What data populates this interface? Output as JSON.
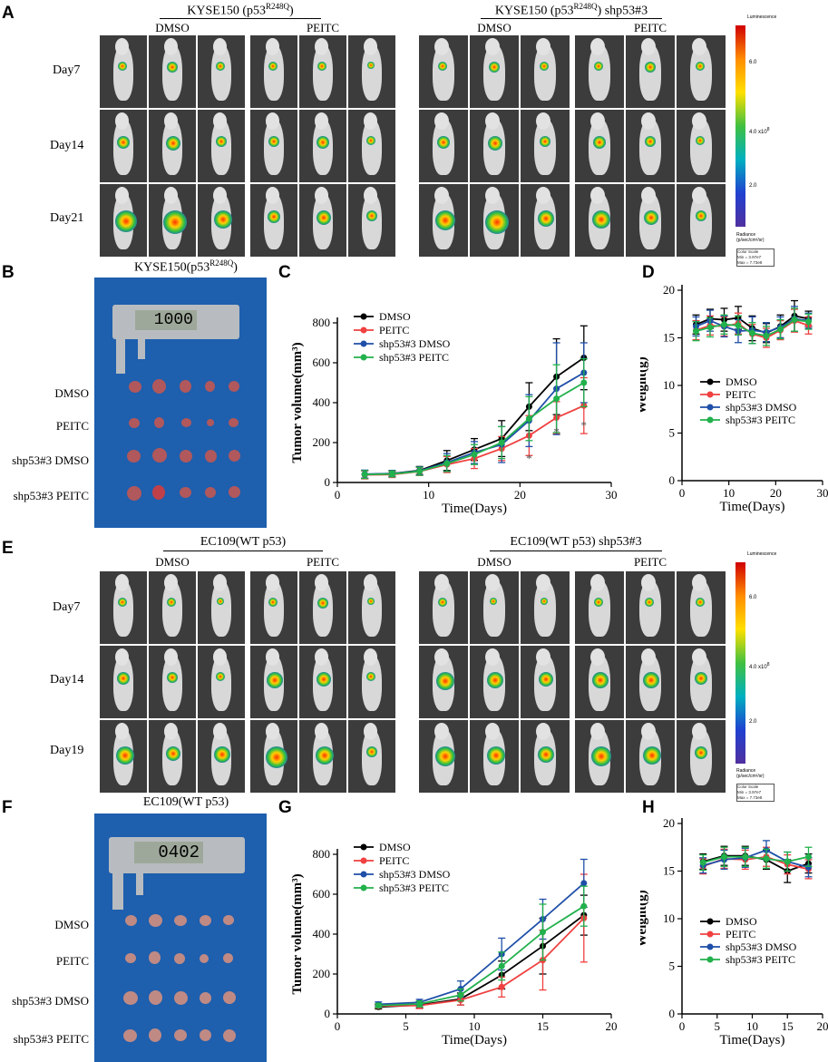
{
  "figure": {
    "panel_labels": [
      "A",
      "B",
      "C",
      "D",
      "E",
      "F",
      "G",
      "H"
    ],
    "panelA": {
      "header_left": "KYSE150 (p53",
      "header_left_sup": "R248Q",
      "header_left_end": ")",
      "header_right": "KYSE150 (p53",
      "header_right_sup": "R248Q",
      "header_right_end": ") shp53#3",
      "groups": [
        "DMSO",
        "PEITC",
        "DMSO",
        "PEITC"
      ],
      "days": [
        "Day7",
        "Day14",
        "Day21"
      ],
      "scale_title": "Luminescence",
      "scale_ticks": [
        "6.0",
        "4.0",
        "2.0"
      ],
      "scale_exp": "x10",
      "scale_exp_sup": "8",
      "scale_unit_1": "Radiance",
      "scale_unit_2": "(p/sec/cm²/sr)",
      "scale_box_1": "Color Scale",
      "scale_box_2": "Min = 3.97e7",
      "scale_box_3": "Max = 7.73e8"
    },
    "panelB": {
      "title": "KYSE150(p53",
      "title_sup": "R248Q",
      "title_end": ")",
      "display": "1000",
      "rows": [
        "DMSO",
        "PEITC",
        "shp53#3 DMSO",
        "shp53#3 PEITC"
      ]
    },
    "panelE": {
      "header_left": "EC109(WT p53)",
      "header_right": "EC109(WT p53) shp53#3",
      "groups": [
        "DMSO",
        "PEITC",
        "DMSO",
        "PEITC"
      ],
      "days": [
        "Day7",
        "Day14",
        "Day19"
      ],
      "scale_title": "Luminescence",
      "scale_ticks": [
        "6.0",
        "4.0",
        "2.0"
      ],
      "scale_exp": "x10",
      "scale_exp_sup": "8",
      "scale_unit_1": "Radiance",
      "scale_unit_2": "(p/sec/cm²/sr)",
      "scale_box_1": "Color Scale",
      "scale_box_2": "Min = 3.97e7",
      "scale_box_3": "Max = 7.73e8"
    },
    "panelF": {
      "title": "EC109(WT p53)",
      "display": "0402",
      "rows": [
        "DMSO",
        "PEITC",
        "shp53#3 DMSO",
        "shp53#3 PEITC"
      ]
    },
    "colors": {
      "DMSO": "#000000",
      "PEITC": "#f04040",
      "shp53#3 DMSO": "#1f4fa8",
      "shp53#3 PEITC": "#22b14c"
    }
  },
  "chart_data": [
    {
      "id": "C",
      "type": "line",
      "xlabel": "Time(Days)",
      "ylabel": "Tumor volume(mm³)",
      "xlim": [
        0,
        30
      ],
      "ylim": [
        0,
        800
      ],
      "xticks": [
        0,
        10,
        20,
        30
      ],
      "yticks": [
        0,
        200,
        400,
        600,
        800
      ],
      "x": [
        3,
        6,
        9,
        12,
        15,
        18,
        21,
        24,
        27
      ],
      "series": [
        {
          "name": "DMSO",
          "values": [
            40,
            45,
            60,
            110,
            165,
            220,
            380,
            530,
            625
          ],
          "err": [
            20,
            15,
            20,
            50,
            55,
            90,
            120,
            190,
            160
          ]
        },
        {
          "name": "PEITC",
          "values": [
            38,
            40,
            55,
            90,
            120,
            170,
            235,
            325,
            385
          ],
          "err": [
            20,
            15,
            20,
            40,
            50,
            60,
            100,
            80,
            140
          ]
        },
        {
          "name": "shp53#3 DMSO",
          "values": [
            42,
            45,
            58,
            100,
            150,
            190,
            310,
            470,
            550
          ],
          "err": [
            20,
            15,
            20,
            45,
            55,
            90,
            130,
            230,
            150
          ]
        },
        {
          "name": "shp53#3 PEITC",
          "values": [
            40,
            43,
            56,
            95,
            140,
            200,
            320,
            420,
            500
          ],
          "err": [
            20,
            15,
            20,
            40,
            50,
            80,
            110,
            170,
            120
          ]
        }
      ],
      "annotations": [
        "*",
        "*",
        "*"
      ],
      "legend": "top-left"
    },
    {
      "id": "D",
      "type": "line",
      "xlabel": "Time(Days)",
      "ylabel": "Weight(g)",
      "xlim": [
        0,
        30
      ],
      "ylim": [
        0,
        20
      ],
      "xticks": [
        0,
        10,
        20,
        30
      ],
      "yticks": [
        0,
        5,
        10,
        15,
        20
      ],
      "x": [
        3,
        6,
        9,
        12,
        15,
        18,
        21,
        24,
        27
      ],
      "series": [
        {
          "name": "DMSO",
          "values": [
            16.4,
            17.0,
            16.9,
            17.1,
            16.0,
            15.5,
            16.2,
            17.3,
            17.0
          ],
          "err": [
            1.0,
            1.0,
            1.2,
            1.2,
            1.3,
            1.0,
            1.2,
            1.6,
            0.8
          ]
        },
        {
          "name": "PEITC",
          "values": [
            15.8,
            16.3,
            16.2,
            16.5,
            15.4,
            15.0,
            15.8,
            16.8,
            16.3
          ],
          "err": [
            1.0,
            1.0,
            1.0,
            1.1,
            1.0,
            1.0,
            1.0,
            1.2,
            0.9
          ]
        },
        {
          "name": "shp53#3 DMSO",
          "values": [
            16.2,
            16.8,
            16.2,
            15.7,
            15.8,
            15.6,
            16.1,
            17.0,
            16.8
          ],
          "err": [
            1.0,
            1.1,
            1.1,
            1.2,
            1.4,
            1.0,
            1.1,
            1.3,
            0.8
          ]
        },
        {
          "name": "shp53#3 PEITC",
          "values": [
            15.7,
            16.1,
            16.4,
            16.3,
            15.5,
            15.2,
            15.9,
            16.9,
            16.7
          ],
          "err": [
            1.0,
            1.0,
            1.0,
            1.0,
            1.1,
            1.0,
            1.0,
            1.2,
            0.8
          ]
        }
      ],
      "legend": "center"
    },
    {
      "id": "G",
      "type": "line",
      "xlabel": "Time(Days)",
      "ylabel": "Tumor volume(mm³)",
      "xlim": [
        0,
        20
      ],
      "ylim": [
        0,
        800
      ],
      "xticks": [
        0,
        5,
        10,
        15,
        20
      ],
      "yticks": [
        0,
        200,
        400,
        600,
        800
      ],
      "x": [
        3,
        6,
        9,
        12,
        15,
        18
      ],
      "series": [
        {
          "name": "DMSO",
          "values": [
            35,
            45,
            75,
            195,
            340,
            495
          ],
          "err": [
            10,
            15,
            30,
            70,
            140,
            100
          ]
        },
        {
          "name": "PEITC",
          "values": [
            40,
            42,
            70,
            135,
            270,
            480
          ],
          "err": [
            10,
            15,
            25,
            50,
            150,
            220
          ]
        },
        {
          "name": "shp53#3 DMSO",
          "values": [
            48,
            58,
            125,
            300,
            475,
            655
          ],
          "err": [
            12,
            15,
            40,
            80,
            100,
            120
          ]
        },
        {
          "name": "shp53#3 PEITC",
          "values": [
            42,
            50,
            95,
            240,
            410,
            540
          ],
          "err": [
            10,
            15,
            30,
            70,
            140,
            100
          ]
        }
      ],
      "legend": "top-left"
    },
    {
      "id": "H",
      "type": "line",
      "xlabel": "Time(Days)",
      "ylabel": "Weight(g)",
      "xlim": [
        0,
        20
      ],
      "ylim": [
        0,
        20
      ],
      "xticks": [
        0,
        5,
        10,
        15,
        20
      ],
      "yticks": [
        0,
        5,
        10,
        15,
        20
      ],
      "x": [
        3,
        6,
        9,
        12,
        15,
        18
      ],
      "series": [
        {
          "name": "DMSO",
          "values": [
            16.0,
            16.6,
            16.6,
            16.2,
            15.0,
            15.8
          ],
          "err": [
            0.8,
            1.0,
            1.0,
            1.0,
            1.2,
            1.0
          ]
        },
        {
          "name": "PEITC",
          "values": [
            15.5,
            16.3,
            16.2,
            16.5,
            15.7,
            15.2
          ],
          "err": [
            0.8,
            1.0,
            1.0,
            1.0,
            1.0,
            1.0
          ]
        },
        {
          "name": "shp53#3 DMSO",
          "values": [
            15.6,
            16.2,
            16.4,
            17.2,
            16.0,
            15.4
          ],
          "err": [
            0.8,
            1.0,
            1.0,
            1.0,
            1.0,
            1.0
          ]
        },
        {
          "name": "shp53#3 PEITC",
          "values": [
            15.9,
            16.5,
            16.5,
            16.3,
            16.0,
            16.5
          ],
          "err": [
            0.8,
            1.0,
            1.0,
            1.0,
            1.0,
            1.0
          ]
        }
      ],
      "legend": "center"
    }
  ]
}
